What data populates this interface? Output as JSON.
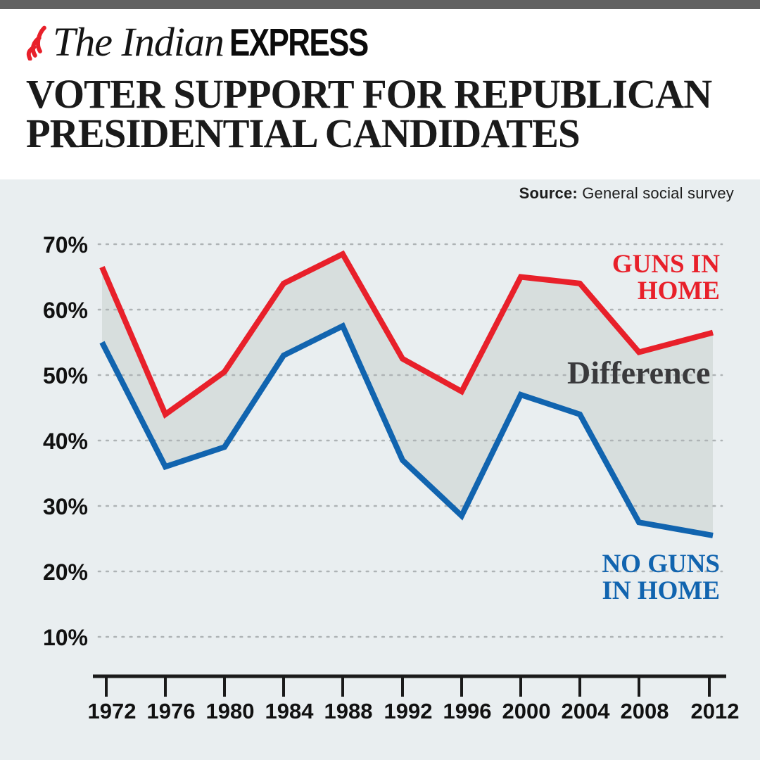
{
  "header": {
    "brand_serif": "The Indian",
    "brand_sans": "EXPRESS",
    "title_line1": "VOTER SUPPORT FOR REPUBLICAN",
    "title_line2": "PRESIDENTIAL CANDIDATES"
  },
  "source": {
    "label": "Source:",
    "text": " General social survey"
  },
  "colors": {
    "top_bar": "#616161",
    "chart_background": "#e9eef0",
    "band_fill": "#d7dedd",
    "red_line": "#e8202a",
    "blue_line": "#1164af",
    "grid_dots": "#aeb3b5",
    "axis": "#1a1a1a",
    "difference_text": "#3a3a3c"
  },
  "chart_data": {
    "type": "area",
    "title": "VOTER SUPPORT FOR REPUBLICAN PRESIDENTIAL CANDIDATES",
    "source": "General social survey",
    "x": [
      1972,
      1976,
      1980,
      1984,
      1988,
      1992,
      1996,
      2000,
      2004,
      2008,
      2012
    ],
    "categories": [
      "1972",
      "1976",
      "1980",
      "1984",
      "1988",
      "1992",
      "1996",
      "2000",
      "2004",
      "2008",
      "2012"
    ],
    "series": [
      {
        "name": "GUNS IN HOME",
        "color": "#e8202a",
        "values": [
          66.5,
          44,
          50.5,
          64,
          68.5,
          52.5,
          47.5,
          65,
          64,
          53.5,
          56.5
        ]
      },
      {
        "name": "NO GUNS IN HOME",
        "color": "#1164af",
        "values": [
          55,
          36,
          39,
          53,
          57.5,
          37,
          28.5,
          47,
          44,
          27.5,
          25.5
        ]
      }
    ],
    "band": {
      "label": "Difference",
      "color": "#d7dedd",
      "between": [
        "GUNS IN HOME",
        "NO GUNS IN HOME"
      ]
    },
    "yticks": [
      70,
      60,
      50,
      40,
      30,
      20,
      10
    ],
    "ytick_labels": [
      "70%",
      "60%",
      "50%",
      "40%",
      "30%",
      "20%",
      "10%"
    ],
    "ylim": [
      10,
      70
    ],
    "grid": "dotted-horizontal",
    "legend_position": "inline-annotations",
    "annotations": {
      "guns": "GUNS IN\nHOME",
      "difference": "Difference",
      "no_guns": "NO GUNS\nIN HOME"
    }
  }
}
